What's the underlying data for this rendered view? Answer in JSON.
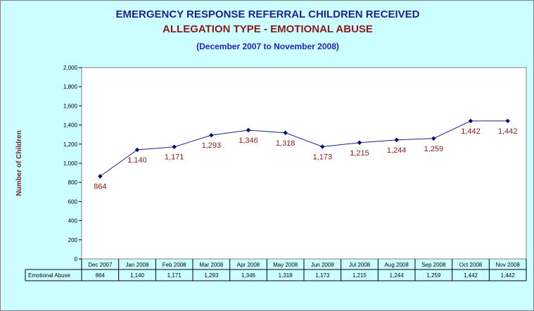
{
  "header": {
    "title": "EMERGENCY RESPONSE REFERRAL CHILDREN RECEIVED",
    "subtitle": "ALLEGATION TYPE - EMOTIONAL ABUSE",
    "period": "(December 2007 to November 2008)"
  },
  "colors": {
    "background": "#ccffff",
    "plot_area": "#ffffff",
    "line": "#1f1f8f",
    "marker": "#000080",
    "title": "#1f1f8f",
    "subtitle": "#8b1a1a",
    "period": "#2020c8",
    "data_label": "#8b1a1a"
  },
  "chart_data": {
    "type": "line",
    "title": "EMERGENCY RESPONSE REFERRAL CHILDREN RECEIVED",
    "subtitle": "ALLEGATION TYPE - EMOTIONAL ABUSE",
    "xlabel": "",
    "ylabel": "Number of Children",
    "ylim": [
      0,
      2000
    ],
    "yticks": [
      0,
      200,
      400,
      600,
      800,
      1000,
      1200,
      1400,
      1600,
      1800,
      2000
    ],
    "ytick_labels": [
      "0",
      "200",
      "400",
      "600",
      "800",
      "1,000",
      "1,200",
      "1,400",
      "1,600",
      "1,800",
      "2,000"
    ],
    "grid": false,
    "categories": [
      "Dec 2007",
      "Jan 2008",
      "Feb 2008",
      "Mar 2008",
      "Apr 2008",
      "May 2008",
      "Jun 2008",
      "Jul 2008",
      "Aug 2008",
      "Sep 2008",
      "Oct 2008",
      "Nov 2008"
    ],
    "series": [
      {
        "name": "Emotional Abuse",
        "values": [
          864,
          1140,
          1171,
          1293,
          1346,
          1318,
          1173,
          1215,
          1244,
          1259,
          1442,
          1442
        ],
        "labels": [
          "864",
          "1,140",
          "1,171",
          "1,293",
          "1,346",
          "1,318",
          "1,173",
          "1,215",
          "1,244",
          "1,259",
          "1,442",
          "1,442"
        ]
      }
    ],
    "data_table": true
  }
}
